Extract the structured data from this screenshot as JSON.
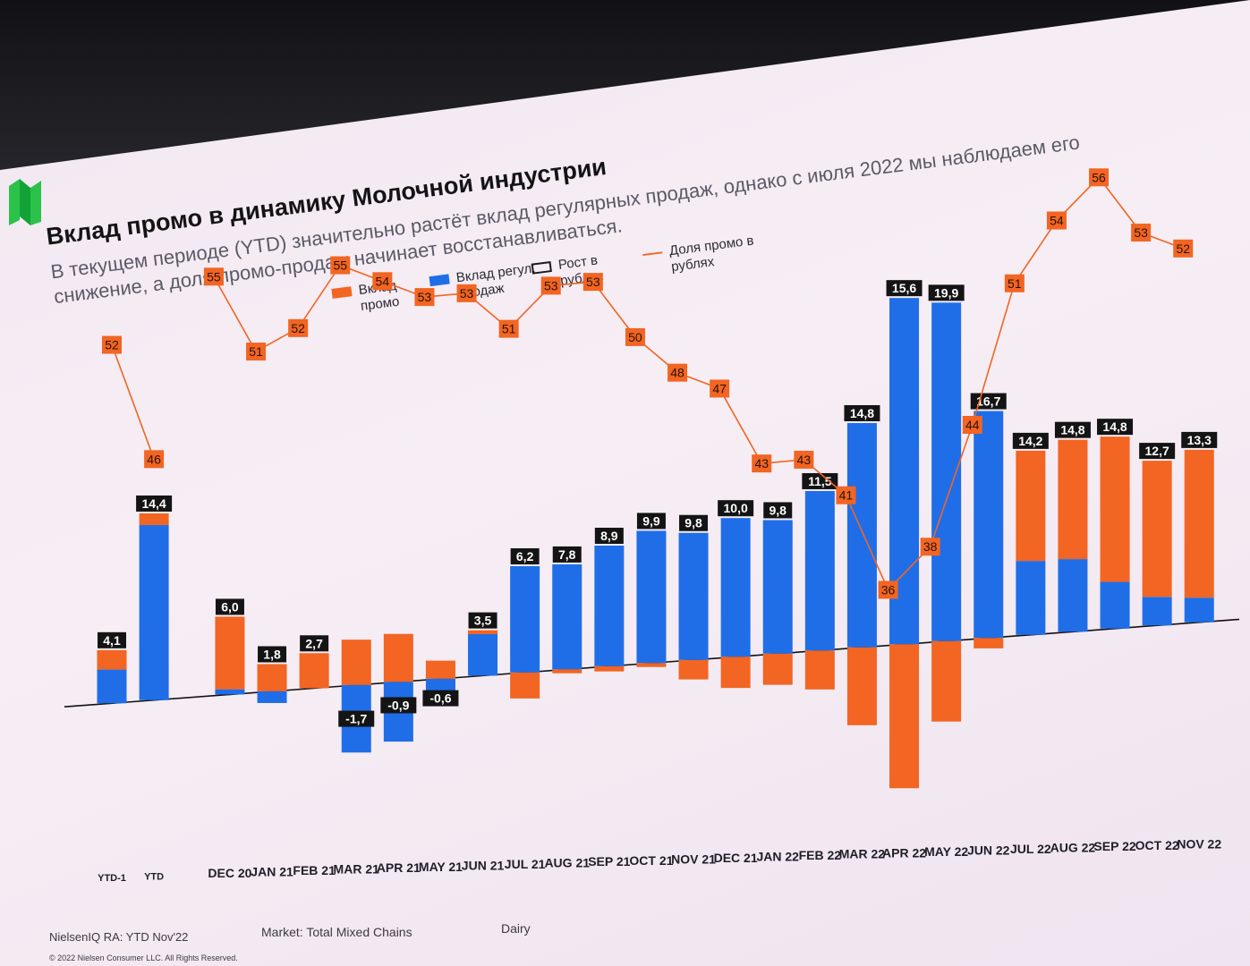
{
  "slide": {
    "title": "Вклад промо в динамику Молочной индустрии",
    "subtitle": "В текущем периоде (YTD) значительно растёт вклад регулярных продаж, однако с июля 2022 мы наблюдаем его снижение, а доля промо-продаж начинает восстанавливаться."
  },
  "legend": [
    {
      "label": "Вклад промо",
      "color": "#f26522",
      "kind": "bar"
    },
    {
      "label": "Вклад регул. продаж",
      "color": "#1f6ee8",
      "kind": "bar"
    },
    {
      "label": "Рост в рублях",
      "color": "#1a1a1a",
      "kind": "box"
    },
    {
      "label": "Доля промо в рублях",
      "color": "#f26522",
      "kind": "line"
    }
  ],
  "footer": {
    "source": "NielsenIQ RA: YTD Nov'22",
    "market": "Market: Total Mixed Chains",
    "category": "Dairy",
    "copyright": "© 2022 Nielsen Consumer LLC. All Rights Reserved."
  },
  "colors": {
    "promo": "#f26522",
    "regular": "#1f6ee8",
    "label_bg": "#141414",
    "axis": "#111111"
  },
  "chart_data": {
    "type": "bar",
    "categories": [
      "YTD-1",
      "YTD",
      "DEC 20",
      "JAN 21",
      "FEB 21",
      "MAR 21",
      "APR 21",
      "MAY 21",
      "JUN 21",
      "JUL 21",
      "AUG 21",
      "SEP 21",
      "OCT 21",
      "NOV 21",
      "DEC 21",
      "JAN 22",
      "FEB 22",
      "MAR 22",
      "APR 22",
      "MAY 22",
      "JUN 22",
      "JUL 22",
      "AUG 22",
      "SEP 22",
      "OCT 22",
      "NOV 22"
    ],
    "series": [
      {
        "name": "Вклад промо",
        "values": [
          1.5,
          0.9,
          5.6,
          2.1,
          2.7,
          3.5,
          3.7,
          1.4,
          0.3,
          -2.0,
          -0.3,
          -0.4,
          -0.3,
          -1.5,
          -2.4,
          -2.4,
          -3.0,
          -6.0,
          -11.1,
          -6.2,
          -0.8,
          8.5,
          9.2,
          11.2,
          10.5,
          11.4
        ]
      },
      {
        "name": "Вклад регул. продаж",
        "values": [
          2.6,
          13.5,
          0.4,
          -0.9,
          0.0,
          -5.2,
          -4.6,
          -2.0,
          3.2,
          8.2,
          8.1,
          9.3,
          10.2,
          9.8,
          10.7,
          10.3,
          12.3,
          17.3,
          26.7,
          26.1,
          17.5,
          5.7,
          5.6,
          3.6,
          2.2,
          1.9
        ]
      }
    ],
    "growth_labels": [
      "4,1",
      "14,4",
      "6,0",
      "1,8",
      "2,7",
      "-1,7",
      "-0,9",
      "-0,6",
      "3,5",
      "6,2",
      "7,8",
      "8,9",
      "9,9",
      "9,8",
      "10,0",
      "9,8",
      "11,5",
      "14,8",
      "15,6",
      "19,9",
      "16,7",
      "14,2",
      "14,8",
      "14,8",
      "12,7",
      "13,3"
    ],
    "promo_share": [
      52,
      46,
      null,
      55,
      51,
      52,
      55,
      54,
      53,
      53,
      51,
      53,
      53,
      50,
      48,
      47,
      43,
      43,
      41,
      36,
      38,
      44,
      51,
      54,
      56,
      53,
      52
    ],
    "promo_share_categories": [
      "YTD-1",
      "YTD",
      "gap",
      "DEC 20",
      "JAN 21",
      "FEB 21",
      "MAR 21",
      "APR 21",
      "MAY 21",
      "JUN 21",
      "JUL 21",
      "AUG 21",
      "SEP 21",
      "OCT 21",
      "NOV 21",
      "DEC 21",
      "JAN 22",
      "FEB 22",
      "MAR 22",
      "APR 22",
      "MAY 22",
      "JUN 22",
      "JUL 22",
      "AUG 22",
      "SEP 22",
      "OCT 22",
      "NOV 22"
    ],
    "line_series": {
      "name": "Доля промо в рублях",
      "ylim": [
        30,
        60
      ]
    },
    "ylim": [
      -12,
      28
    ],
    "grid": false,
    "legend_position": "top"
  }
}
